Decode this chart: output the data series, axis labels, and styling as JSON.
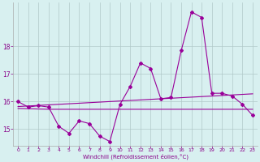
{
  "x": [
    0,
    1,
    2,
    3,
    4,
    5,
    6,
    7,
    8,
    9,
    10,
    11,
    12,
    13,
    14,
    15,
    16,
    17,
    18,
    19,
    20,
    21,
    22,
    23
  ],
  "y_main": [
    16.0,
    15.8,
    15.85,
    15.8,
    15.1,
    14.85,
    15.3,
    15.2,
    14.75,
    14.55,
    15.9,
    16.55,
    17.4,
    17.2,
    16.1,
    16.15,
    17.85,
    19.25,
    19.05,
    16.3,
    16.3,
    16.2,
    15.9,
    15.5
  ],
  "y_trend": [
    15.82,
    15.84,
    15.86,
    15.88,
    15.9,
    15.92,
    15.94,
    15.96,
    15.98,
    16.0,
    16.02,
    16.04,
    16.06,
    16.08,
    16.1,
    16.12,
    16.14,
    16.16,
    16.18,
    16.2,
    16.22,
    16.24,
    16.26,
    16.28
  ],
  "y_flat": [
    15.75,
    15.74,
    15.73,
    15.72,
    15.72,
    15.72,
    15.72,
    15.72,
    15.72,
    15.72,
    15.72,
    15.72,
    15.72,
    15.72,
    15.72,
    15.72,
    15.72,
    15.72,
    15.72,
    15.72,
    15.72,
    15.72,
    15.72,
    15.72
  ],
  "line_color": "#990099",
  "bg_color": "#d8f0f0",
  "grid_color": "#b0c8c8",
  "xlabel": "Windchill (Refroidissement éolien,°C)",
  "ylim": [
    14.4,
    19.6
  ],
  "xlim": [
    -0.5,
    23.5
  ],
  "yticks": [
    15,
    16,
    17,
    18
  ],
  "xticks": [
    0,
    1,
    2,
    3,
    4,
    5,
    6,
    7,
    8,
    9,
    10,
    11,
    12,
    13,
    14,
    15,
    16,
    17,
    18,
    19,
    20,
    21,
    22,
    23
  ]
}
